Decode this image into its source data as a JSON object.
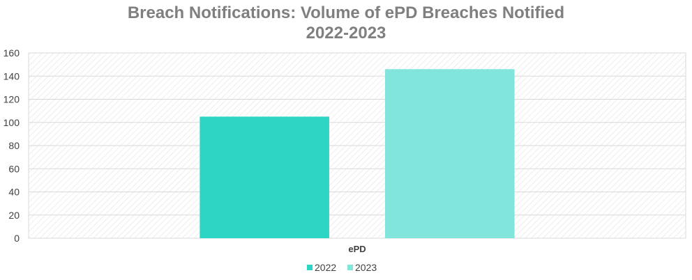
{
  "chart_data": {
    "type": "bar",
    "title_line1": "Breach Notifications: Volume of ePD Breaches Notified",
    "title_line2": "2022-2023",
    "categories": [
      "ePD"
    ],
    "series": [
      {
        "name": "2022",
        "values": [
          105
        ],
        "color": "#2dd6c4"
      },
      {
        "name": "2023",
        "values": [
          146
        ],
        "color": "#82e5db"
      }
    ],
    "ylim": [
      0,
      160
    ],
    "yticks": [
      0,
      20,
      40,
      60,
      80,
      100,
      120,
      140,
      160
    ],
    "grid": true,
    "plot_background": "hatched",
    "legend_position": "bottom"
  }
}
